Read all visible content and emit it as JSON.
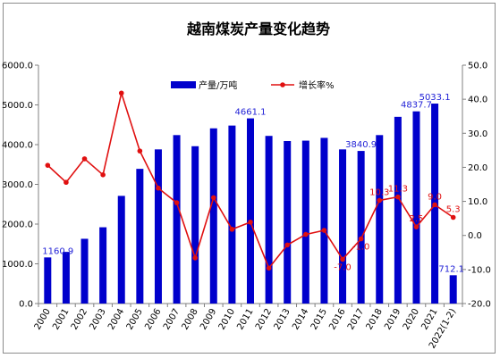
{
  "chart_data": {
    "type": "bar+line",
    "title": "越南煤炭产量变化趋势",
    "categories": [
      "2000",
      "2001",
      "2002",
      "2003",
      "2004",
      "2005",
      "2006",
      "2007",
      "2008",
      "2009",
      "2010",
      "2011",
      "2012",
      "2013",
      "2014",
      "2015",
      "2016",
      "2017",
      "2018",
      "2019",
      "2020",
      "2021",
      "2022(1-2)"
    ],
    "series": [
      {
        "name": "产量/万吨",
        "type": "bar",
        "axis": "left",
        "color": "#0000cc",
        "values": [
          1160.9,
          1300,
          1630,
          1920,
          2710,
          3390,
          3880,
          4240,
          3960,
          4410,
          4480,
          4661.1,
          4220,
          4090,
          4100,
          4170,
          3880,
          3840.9,
          4240,
          4700,
          4837.7,
          5033.1,
          712.1
        ]
      },
      {
        "name": "增长率%",
        "type": "line",
        "axis": "right",
        "color": "#e01010",
        "values": [
          20.6,
          15.6,
          22.5,
          17.8,
          41.8,
          24.8,
          13.9,
          9.6,
          -6.6,
          11.1,
          1.8,
          3.9,
          -9.6,
          -2.8,
          0.3,
          1.5,
          -7.0,
          -1.0,
          10.3,
          11.3,
          2.5,
          9.0,
          5.3
        ]
      }
    ],
    "bar_labels": [
      {
        "index": 0,
        "text": "1160.9"
      },
      {
        "index": 11,
        "text": "4661.1"
      },
      {
        "index": 17,
        "text": "3840.9"
      },
      {
        "index": 20,
        "text": "4837.7"
      },
      {
        "index": 21,
        "text": "5033.1"
      },
      {
        "index": 22,
        "text": "712.1"
      }
    ],
    "line_labels": [
      {
        "index": 16,
        "text": "-7.0"
      },
      {
        "index": 17,
        "text": "-1.0"
      },
      {
        "index": 18,
        "text": "10.3"
      },
      {
        "index": 19,
        "text": "11.3"
      },
      {
        "index": 20,
        "text": "2.5"
      },
      {
        "index": 21,
        "text": "9.0"
      },
      {
        "index": 22,
        "text": "5.3"
      }
    ],
    "y_left": {
      "min": 0,
      "max": 6000,
      "step": 1000,
      "tick_labels": [
        "0.0",
        "1000.0",
        "2000.0",
        "3000.0",
        "4000.0",
        "5000.0",
        "6000.0"
      ]
    },
    "y_right": {
      "min": -20,
      "max": 50,
      "step": 10,
      "tick_labels": [
        "-20.0",
        "-10.0",
        "0.0",
        "10.0",
        "20.0",
        "30.0",
        "40.0",
        "50.0"
      ]
    },
    "grid": false,
    "legend_position": "top-center",
    "xlabel": "",
    "ylabel": ""
  }
}
